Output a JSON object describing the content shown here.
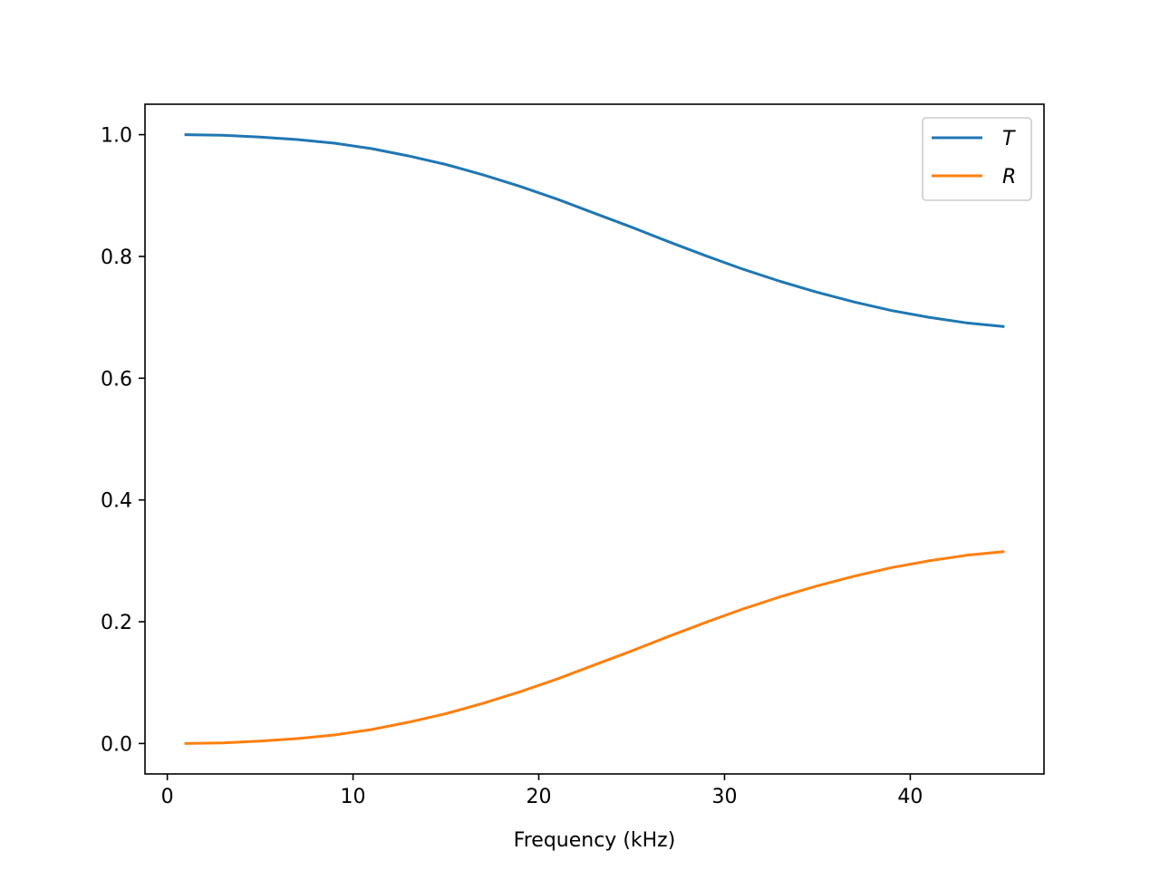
{
  "chart_data": {
    "type": "line",
    "title": "",
    "xlabel": "Frequency (kHz)",
    "ylabel": "",
    "xlim": [
      -1.2,
      47.2
    ],
    "ylim": [
      -0.05,
      1.05
    ],
    "xticks": [
      0,
      10,
      20,
      30,
      40
    ],
    "xtick_labels": [
      "0",
      "10",
      "20",
      "30",
      "40"
    ],
    "yticks": [
      0.0,
      0.2,
      0.4,
      0.6,
      0.8,
      1.0
    ],
    "ytick_labels": [
      "0.0",
      "0.2",
      "0.4",
      "0.6",
      "0.8",
      "1.0"
    ],
    "grid": false,
    "legend_position": "top-right",
    "x": [
      1,
      3,
      5,
      7,
      9,
      11,
      13,
      15,
      17,
      19,
      21,
      23,
      25,
      27,
      29,
      31,
      33,
      35,
      37,
      39,
      41,
      43,
      45
    ],
    "series": [
      {
        "name": "T",
        "color": "#1f77b4",
        "values": [
          1.0,
          0.999,
          0.996,
          0.992,
          0.986,
          0.977,
          0.965,
          0.951,
          0.934,
          0.915,
          0.894,
          0.871,
          0.848,
          0.824,
          0.801,
          0.779,
          0.759,
          0.741,
          0.725,
          0.711,
          0.7,
          0.691,
          0.685
        ]
      },
      {
        "name": "R",
        "color": "#ff7f0e",
        "values": [
          0.0,
          0.001,
          0.004,
          0.008,
          0.014,
          0.023,
          0.035,
          0.049,
          0.066,
          0.085,
          0.106,
          0.129,
          0.152,
          0.176,
          0.199,
          0.221,
          0.241,
          0.259,
          0.275,
          0.289,
          0.3,
          0.309,
          0.315
        ]
      }
    ]
  }
}
